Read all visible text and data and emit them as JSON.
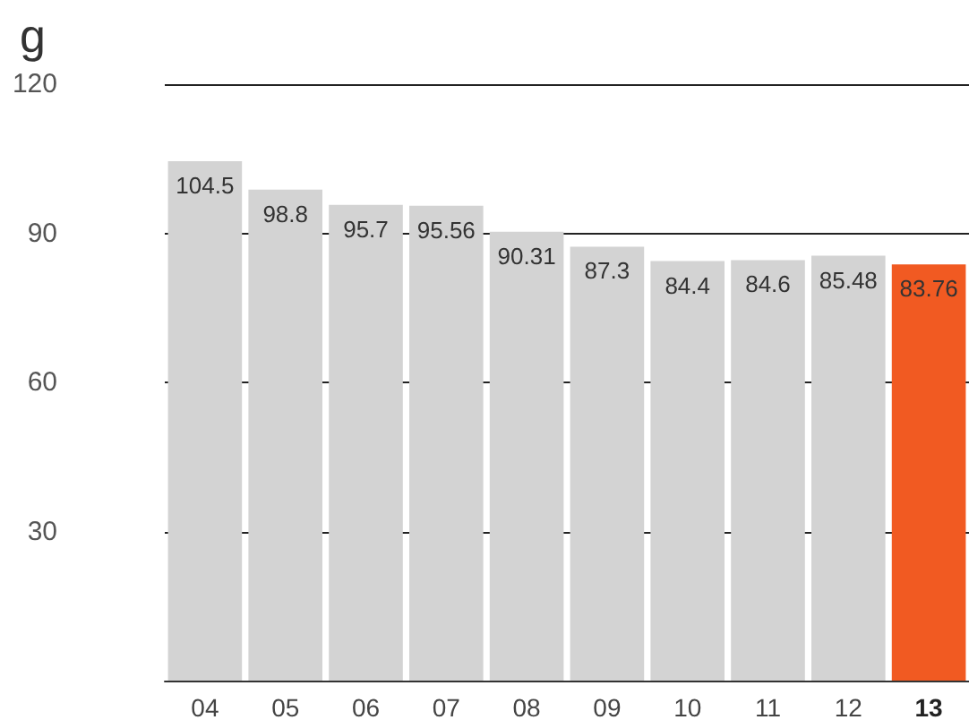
{
  "chart_data": {
    "type": "bar",
    "ylabel": "g",
    "categories": [
      "04",
      "05",
      "06",
      "07",
      "08",
      "09",
      "10",
      "11",
      "12",
      "13"
    ],
    "values": [
      104.5,
      98.8,
      95.7,
      95.56,
      90.31,
      87.3,
      84.4,
      84.6,
      85.48,
      83.76
    ],
    "colors": [
      "#d3d3d3",
      "#d3d3d3",
      "#d3d3d3",
      "#d3d3d3",
      "#d3d3d3",
      "#d3d3d3",
      "#d3d3d3",
      "#d3d3d3",
      "#d3d3d3",
      "#f15a22"
    ],
    "ylim": [
      0,
      120
    ],
    "yticks": [
      {
        "value": 0,
        "label": null
      },
      30,
      60,
      90,
      120
    ],
    "grid": "y",
    "data_labels": true
  }
}
